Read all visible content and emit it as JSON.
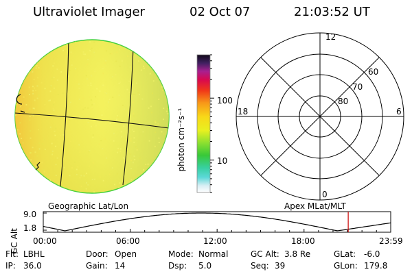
{
  "header": {
    "instrument": "Ultraviolet Imager",
    "date": "02 Oct 07",
    "time": "21:03:52 UT"
  },
  "colorbar": {
    "unit_label": "photon cm⁻²s⁻¹",
    "ticks": [
      {
        "label": "100",
        "value": 100
      },
      {
        "label": "10",
        "value": 10
      }
    ],
    "range": [
      3,
      500
    ],
    "scale": "log"
  },
  "left_panel": {
    "label": "Geographic Lat/Lon"
  },
  "right_panel": {
    "label": "Apex MLat/MLT",
    "hour_labels": [
      "12",
      "18",
      "6",
      "0"
    ],
    "lat_labels": [
      "60",
      "70",
      "80"
    ]
  },
  "timeline": {
    "ylabel": "GC Alt",
    "y_ticks": [
      "9.0",
      "1.8"
    ],
    "y_range": [
      1.8,
      9.0
    ],
    "x_ticks": [
      "00:00",
      "06:00",
      "12:00",
      "18:00",
      "23:59"
    ],
    "marker_time": "21:03"
  },
  "status": {
    "row1": [
      {
        "key": "Flt:",
        "value": "LBHL"
      },
      {
        "key": "Door:",
        "value": "Open"
      },
      {
        "key": "Mode:",
        "value": "Normal"
      },
      {
        "key": "GC Alt:",
        "value": "3.8 Re"
      },
      {
        "key": "GLat:",
        "value": "-6.0"
      }
    ],
    "row2": [
      {
        "key": "IP:",
        "value": "36.0"
      },
      {
        "key": "Gain:",
        "value": "14"
      },
      {
        "key": "Dsp:",
        "value": "5.0"
      },
      {
        "key": "Seq:",
        "value": "39"
      },
      {
        "key": "GLon:",
        "value": "179.8"
      }
    ]
  },
  "colors": {
    "disk_base": "#f2ee55",
    "disk_edge": "#3ccf3c",
    "marker": "#cc0000"
  }
}
